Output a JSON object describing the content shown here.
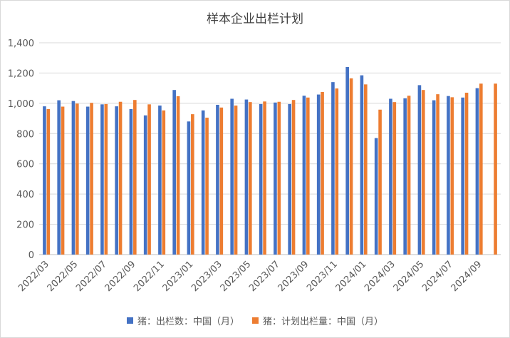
{
  "chart_data": {
    "type": "bar",
    "title": "样本企业出栏计划",
    "xlabel": "",
    "ylabel": "",
    "ylim": [
      0,
      1400
    ],
    "yticks": [
      "0",
      "200",
      "400",
      "600",
      "800",
      "1,000",
      "1,200",
      "1,400"
    ],
    "grid": true,
    "legend_position": "bottom",
    "categories": [
      "2022/03",
      "2022/04",
      "2022/05",
      "2022/06",
      "2022/07",
      "2022/08",
      "2022/09",
      "2022/10",
      "2022/11",
      "2022/12",
      "2023/01",
      "2023/02",
      "2023/03",
      "2023/04",
      "2023/05",
      "2023/06",
      "2023/07",
      "2023/08",
      "2023/09",
      "2023/10",
      "2023/11",
      "2023/12",
      "2024/01",
      "2024/02",
      "2024/03",
      "2024/04",
      "2024/05",
      "2024/06",
      "2024/07",
      "2024/08",
      "2024/09",
      "2024/10"
    ],
    "xtick_labels": [
      "2022/03",
      "2022/05",
      "2022/07",
      "2022/09",
      "2022/11",
      "2023/01",
      "2023/03",
      "2023/05",
      "2023/07",
      "2023/09",
      "2023/11",
      "2024/01",
      "2024/03",
      "2024/05",
      "2024/07",
      "2024/09"
    ],
    "series": [
      {
        "name": "猪：出栏数：中国（月）",
        "color": "#4472c4",
        "values": [
          980,
          1020,
          1015,
          978,
          993,
          980,
          962,
          920,
          985,
          1088,
          880,
          953,
          990,
          1030,
          1025,
          995,
          1005,
          995,
          1050,
          1058,
          1140,
          1240,
          1185,
          770,
          1030,
          1033,
          1120,
          1020,
          1048,
          1038,
          1100,
          null
        ]
      },
      {
        "name": "猪：计划出栏量：中国（月）",
        "color": "#ed7d31",
        "values": [
          962,
          978,
          998,
          1003,
          995,
          1010,
          1022,
          993,
          953,
          1047,
          928,
          905,
          972,
          985,
          1008,
          1012,
          1010,
          1022,
          1038,
          1075,
          1098,
          1165,
          1125,
          958,
          1008,
          1050,
          1088,
          1060,
          1040,
          1070,
          1130,
          1130
        ]
      }
    ]
  }
}
